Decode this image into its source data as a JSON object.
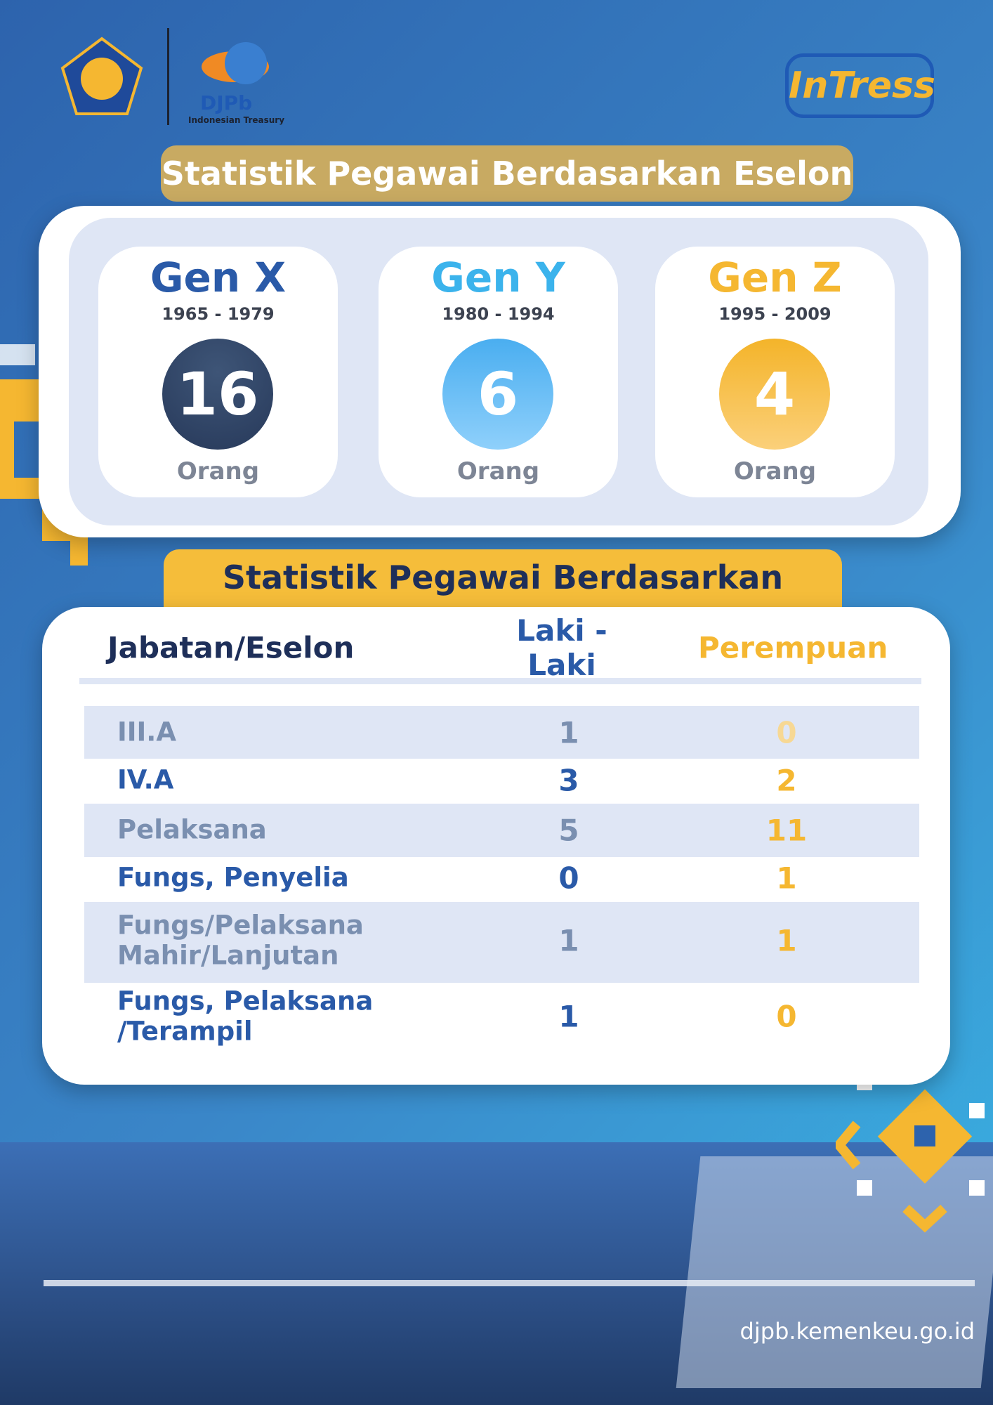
{
  "header": {
    "logo_text": "DJPb",
    "logo_subtext": "Indonesian Treasury",
    "brand": "InTress"
  },
  "sections": [
    {
      "title": "Statistik Pegawai Berdasarkan Eselon"
    },
    {
      "title": "Statistik Pegawai Berdasarkan Eselon"
    }
  ],
  "generations": [
    {
      "name": "Gen X",
      "years": "1965 - 1979",
      "count": 16,
      "unit": "Orang"
    },
    {
      "name": "Gen Y",
      "years": "1980 - 1994",
      "count": 6,
      "unit": "Orang"
    },
    {
      "name": "Gen Z",
      "years": "1995 - 2009",
      "count": 4,
      "unit": "Orang"
    }
  ],
  "table": {
    "columns": [
      "Jabatan/Eselon",
      "Laki - Laki",
      "Perempuan"
    ],
    "rows": [
      [
        "III.A",
        1,
        0
      ],
      [
        "IV.A",
        3,
        2
      ],
      [
        "Pelaksana",
        5,
        11
      ],
      [
        "Fungs, Penyelia",
        0,
        1
      ],
      [
        "Fungs/Pelaksana Mahir/Lanjutan",
        1,
        1
      ],
      [
        "Fungs, Pelaksana /Terampil",
        1,
        0
      ]
    ]
  },
  "footer": {
    "url": "djpb.kemenkeu.go.id"
  }
}
